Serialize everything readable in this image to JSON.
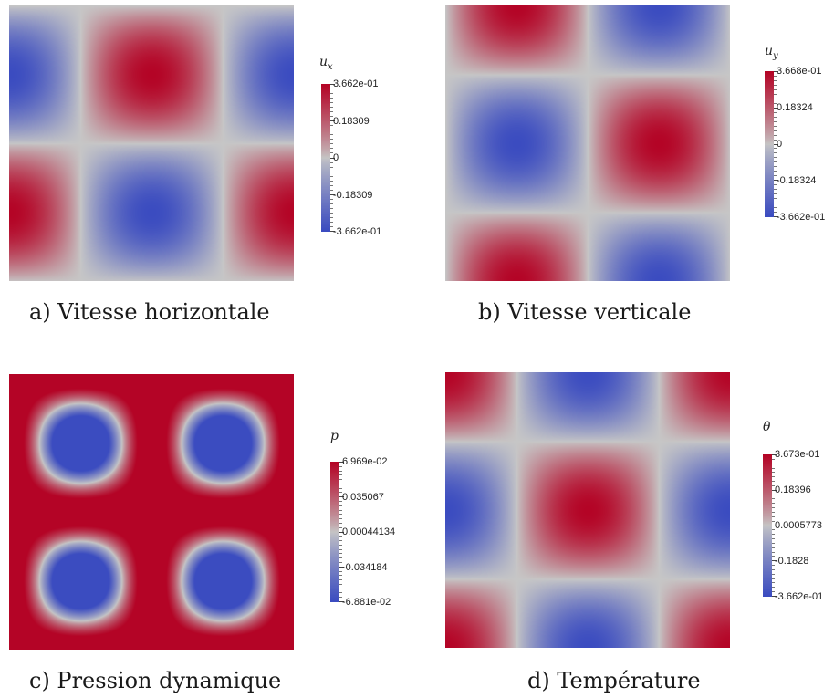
{
  "panels": [
    {
      "id": "a",
      "caption": "a) Vitesse horizontale",
      "variable": "u",
      "variable_sub": "x",
      "colorbar": {
        "max_label": "3.662e-01",
        "labels": [
          "3.662e-01",
          "0.18309",
          "0",
          "-0.18309",
          "-3.662e-01"
        ],
        "range": [
          -0.3662,
          0.3662
        ]
      },
      "field": "ux"
    },
    {
      "id": "b",
      "caption": "b) Vitesse verticale",
      "variable": "u",
      "variable_sub": "y",
      "colorbar": {
        "labels": [
          "3.668e-01",
          "0.18324",
          "0",
          "-0.18324",
          "-3.662e-01"
        ],
        "range": [
          -0.3662,
          0.3668
        ]
      },
      "field": "uy"
    },
    {
      "id": "c",
      "caption": "c) Pression dynamique",
      "variable": "p",
      "variable_sub": "",
      "colorbar": {
        "labels": [
          "6.969e-02",
          "0.035067",
          "0.00044134",
          "-0.034184",
          "-6.881e-02"
        ],
        "range": [
          -0.06881,
          0.06969
        ]
      },
      "field": "p"
    },
    {
      "id": "d",
      "caption": "d) Température",
      "variable": "θ",
      "variable_sub": "",
      "colorbar": {
        "labels": [
          "3.673e-01",
          "0.18396",
          "0.0005773",
          "-0.1828",
          "-3.662e-01"
        ],
        "range": [
          -0.3662,
          0.3673
        ]
      },
      "field": "theta"
    }
  ],
  "colormap": {
    "name": "cool-to-warm",
    "low": "#3b4cc0",
    "mid": "#c6c6c6",
    "high": "#b40426"
  }
}
